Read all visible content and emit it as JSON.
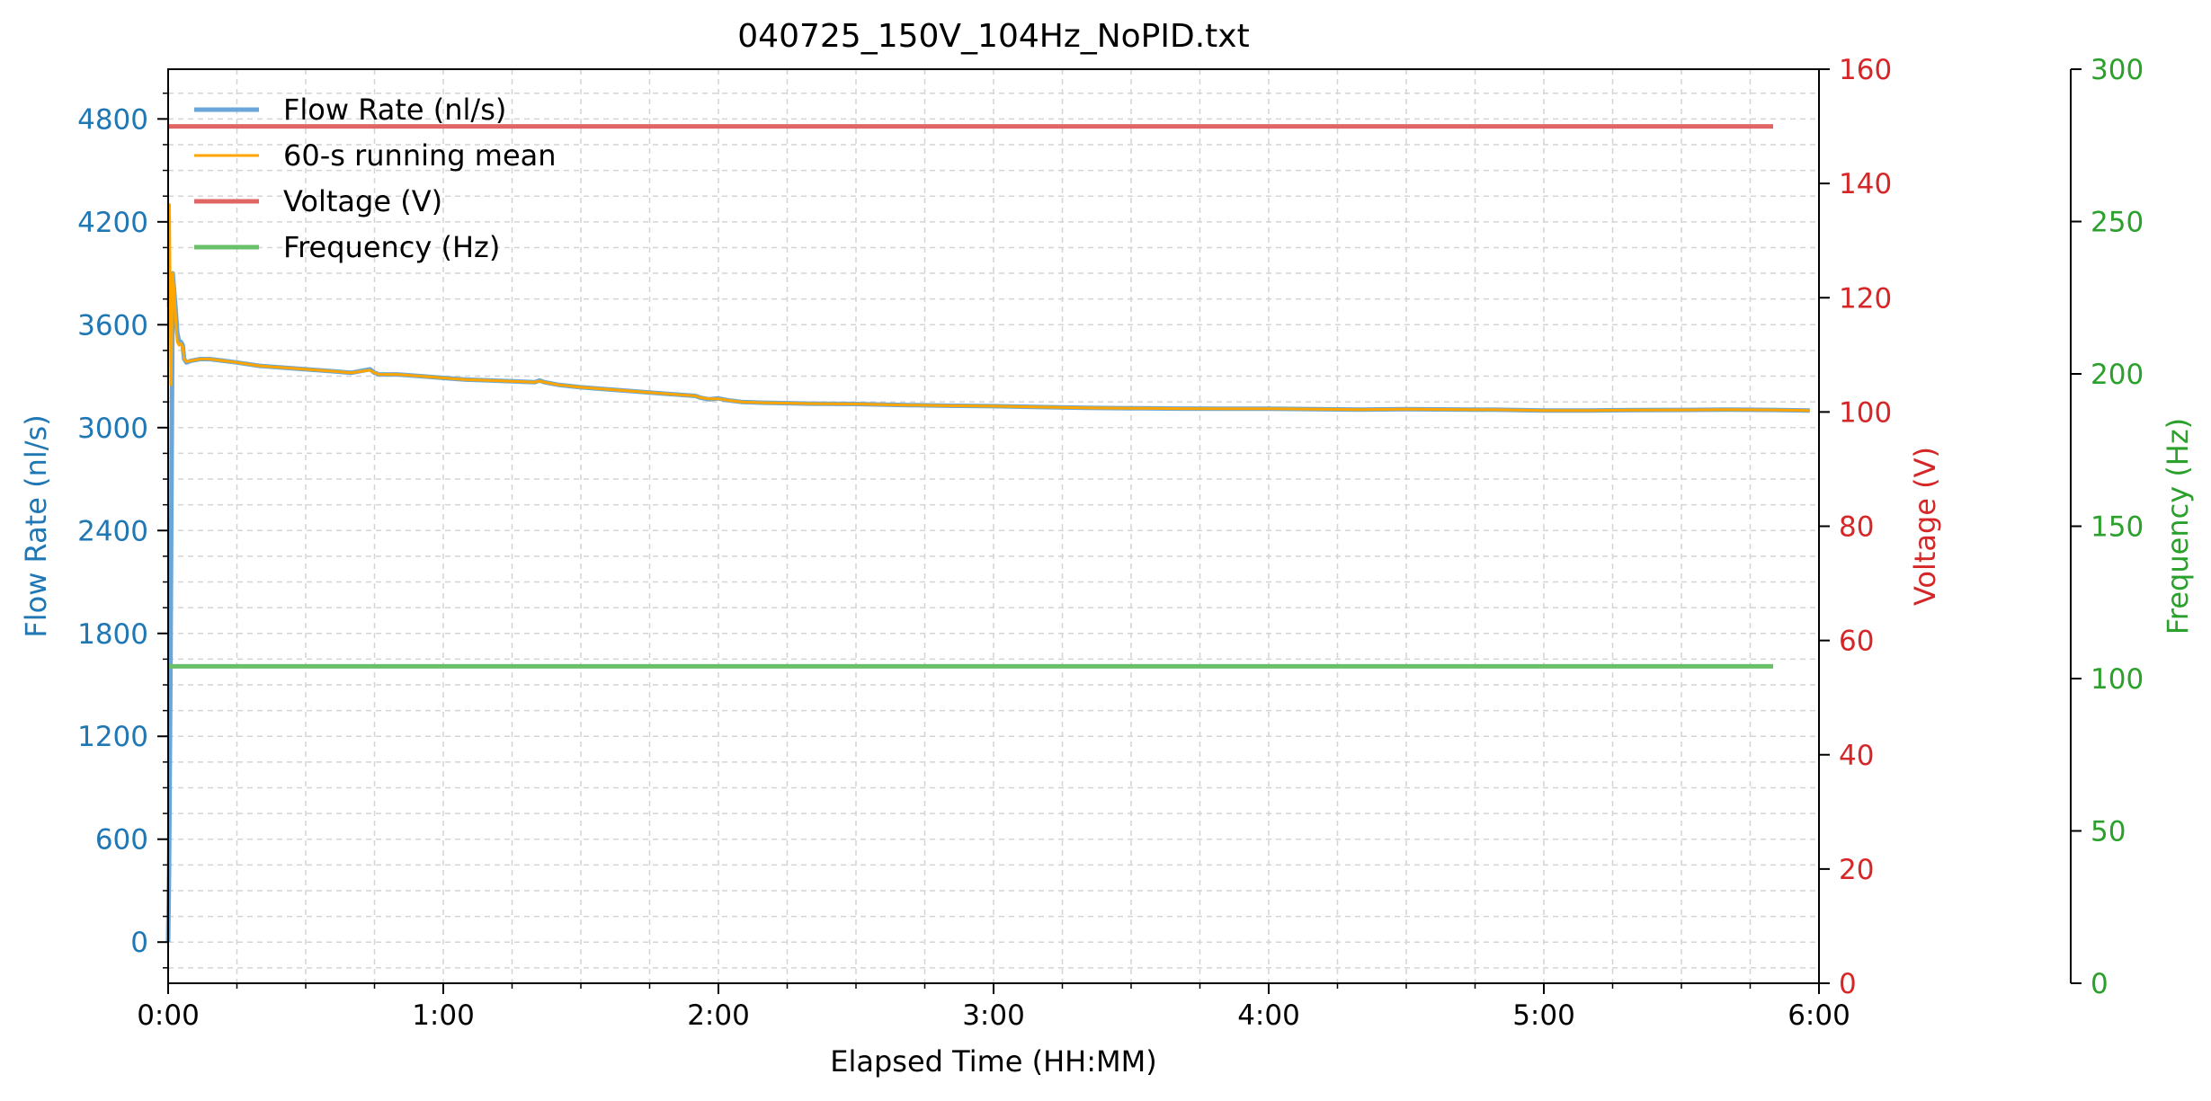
{
  "chart_data": {
    "type": "line",
    "title": "040725_150V_104Hz_NoPID.txt",
    "xlabel": "Elapsed Time (HH:MM)",
    "x_unit": "minutes",
    "xlim": [
      0,
      360
    ],
    "x_ticks": [
      {
        "value": 0,
        "label": "0:00"
      },
      {
        "value": 60,
        "label": "1:00"
      },
      {
        "value": 120,
        "label": "2:00"
      },
      {
        "value": 180,
        "label": "3:00"
      },
      {
        "value": 240,
        "label": "4:00"
      },
      {
        "value": 300,
        "label": "5:00"
      },
      {
        "value": 360,
        "label": "6:00"
      }
    ],
    "axes": {
      "flow": {
        "label": "Flow Rate (nl/s)",
        "color": "#1f77b4",
        "lim": [
          -240,
          5090
        ],
        "ticks": [
          0,
          600,
          1200,
          1800,
          2400,
          3000,
          3600,
          4200,
          4800
        ]
      },
      "voltage": {
        "label": "Voltage (V)",
        "color": "#d62728",
        "lim": [
          0,
          160
        ],
        "ticks": [
          0,
          20,
          40,
          60,
          80,
          100,
          120,
          140,
          160
        ]
      },
      "frequency": {
        "label": "Frequency (Hz)",
        "color": "#2ca02c",
        "lim": [
          0,
          300
        ],
        "ticks": [
          0,
          50,
          100,
          150,
          200,
          250,
          300
        ]
      }
    },
    "legend": {
      "position": "upper-left",
      "entries": [
        {
          "label": "Flow Rate (nl/s)",
          "color": "#6aa7d8"
        },
        {
          "label": "60-s running mean",
          "color": "#ffa500"
        },
        {
          "label": "Voltage (V)",
          "color": "#e06666"
        },
        {
          "label": "Frequency (Hz)",
          "color": "#6abf69"
        }
      ]
    },
    "grid": true,
    "series": [
      {
        "name": "Flow Rate (nl/s)",
        "axis": "flow",
        "color": "#6aa7d8",
        "x": [
          0,
          0.2,
          0.5,
          0.8,
          1.0,
          1.3,
          1.6,
          2.0,
          2.4,
          2.8,
          3.2,
          3.5,
          4.0,
          5,
          7,
          9,
          12,
          15,
          20,
          25,
          30,
          35,
          40,
          44,
          45,
          46,
          50,
          55,
          60,
          65,
          70,
          75,
          80,
          81,
          82,
          85,
          90,
          95,
          100,
          105,
          110,
          115,
          116,
          118,
          120,
          122,
          125,
          130,
          140,
          150,
          160,
          170,
          180,
          190,
          200,
          210,
          220,
          230,
          240,
          250,
          260,
          270,
          280,
          290,
          300,
          310,
          320,
          330,
          340,
          350,
          358
        ],
        "values": [
          0,
          400,
          1600,
          3000,
          3900,
          3800,
          3700,
          3550,
          3500,
          3500,
          3480,
          3400,
          3380,
          3390,
          3400,
          3400,
          3390,
          3380,
          3360,
          3350,
          3340,
          3330,
          3320,
          3340,
          3320,
          3310,
          3310,
          3300,
          3290,
          3280,
          3275,
          3270,
          3265,
          3275,
          3265,
          3250,
          3235,
          3225,
          3215,
          3205,
          3195,
          3185,
          3175,
          3165,
          3170,
          3160,
          3150,
          3145,
          3140,
          3138,
          3132,
          3128,
          3125,
          3120,
          3115,
          3113,
          3111,
          3110,
          3110,
          3108,
          3105,
          3108,
          3106,
          3104,
          3100,
          3100,
          3102,
          3103,
          3105,
          3103,
          3100
        ]
      },
      {
        "name": "60-s running mean",
        "axis": "flow",
        "color": "#ffa500",
        "x": [
          0,
          0.3,
          0.6,
          1.0,
          1.3,
          1.6,
          2.0,
          2.4,
          2.8,
          3.2,
          3.5,
          4.0,
          5,
          7,
          9,
          12,
          15,
          20,
          25,
          30,
          35,
          40,
          44,
          45,
          46,
          50,
          55,
          60,
          65,
          70,
          75,
          80,
          81,
          82,
          85,
          90,
          95,
          100,
          105,
          110,
          115,
          116,
          118,
          120,
          122,
          125,
          130,
          140,
          150,
          160,
          170,
          180,
          190,
          200,
          210,
          220,
          230,
          240,
          250,
          260,
          270,
          280,
          290,
          300,
          310,
          320,
          330,
          340,
          350,
          358
        ],
        "values": [
          3700,
          4300,
          3250,
          3900,
          3800,
          3650,
          3500,
          3480,
          3490,
          3470,
          3400,
          3385,
          3390,
          3400,
          3400,
          3390,
          3380,
          3360,
          3350,
          3340,
          3330,
          3320,
          3335,
          3320,
          3310,
          3310,
          3300,
          3290,
          3280,
          3275,
          3270,
          3265,
          3272,
          3265,
          3250,
          3235,
          3225,
          3215,
          3205,
          3195,
          3185,
          3175,
          3168,
          3168,
          3160,
          3150,
          3145,
          3140,
          3138,
          3132,
          3128,
          3125,
          3120,
          3115,
          3113,
          3111,
          3110,
          3110,
          3108,
          3105,
          3108,
          3106,
          3104,
          3100,
          3100,
          3102,
          3103,
          3105,
          3103,
          3100
        ]
      },
      {
        "name": "Voltage (V)",
        "axis": "voltage",
        "color": "#e06666",
        "x": [
          0,
          350
        ],
        "values": [
          150,
          150
        ]
      },
      {
        "name": "Frequency (Hz)",
        "axis": "frequency",
        "color": "#6abf69",
        "x": [
          0,
          350
        ],
        "values": [
          104,
          104
        ]
      }
    ]
  }
}
